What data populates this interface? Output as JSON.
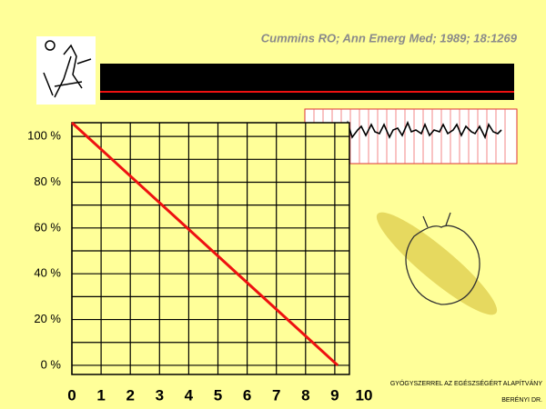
{
  "chart_data": {
    "type": "line",
    "reference": "Cummins RO; Ann Emerg Med; 1989; 18:1269",
    "footer_line1": "GYÓGYSZERREL AZ EGÉSZSÉGÉRT ALAPÍTVÁNY",
    "footer_line2": "BERÉNYI DR.",
    "x": [
      0,
      9.1
    ],
    "series": [
      {
        "color": "#ee1111",
        "values": [
          106,
          0
        ]
      }
    ],
    "xlim": [
      0,
      10
    ],
    "xticks": [
      0,
      1,
      2,
      3,
      4,
      5,
      6,
      7,
      8,
      9,
      10
    ],
    "ylim": [
      -4,
      106
    ],
    "yticks": [
      {
        "value": 0,
        "label": "0 %"
      },
      {
        "value": 20,
        "label": "20 %"
      },
      {
        "value": 40,
        "label": "40 %"
      },
      {
        "value": 60,
        "label": "60 %"
      },
      {
        "value": 80,
        "label": "80 %"
      },
      {
        "value": 100,
        "label": "100 %"
      }
    ],
    "grid": true
  }
}
